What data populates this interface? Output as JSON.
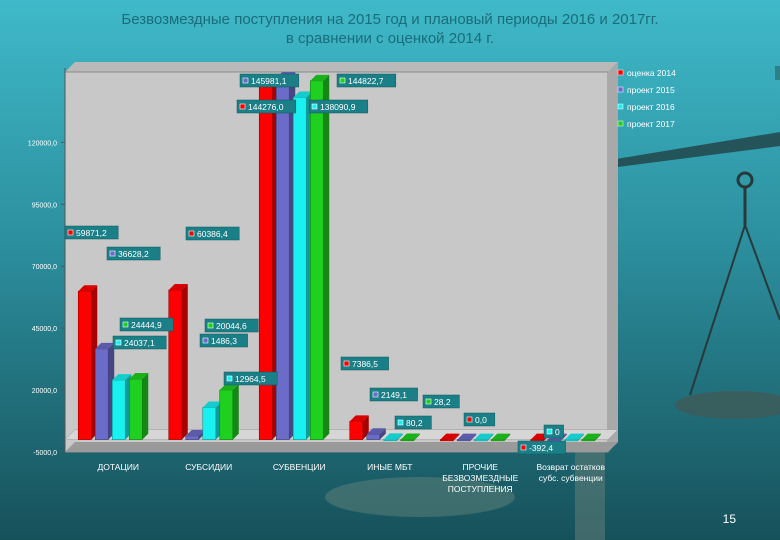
{
  "slide": {
    "title_line1": "Безвозмездные поступления на 2015 год и плановый периоды 2016 и 2017гг.",
    "title_line2": "в сравнении с оценкой 2014 г.",
    "page_number": "15"
  },
  "chart_data": {
    "type": "bar",
    "categories": [
      "ДОТАЦИИ",
      "СУБСИДИИ",
      "СУБВЕНЦИИ",
      "ИНЫЕ МБТ",
      "ПРОЧИЕ БЕЗВОЗМЕЗДНЫЕ ПОСТУПЛЕНИЯ",
      "Возврат остатков субс. субвенции"
    ],
    "category_lines": [
      [
        "ДОТАЦИИ"
      ],
      [
        "СУБСИДИИ"
      ],
      [
        "СУБВЕНЦИИ"
      ],
      [
        "ИНЫЕ МБТ"
      ],
      [
        "ПРОЧИЕ",
        "БЕЗВОЗМЕЗДНЫЕ",
        "ПОСТУПЛЕНИЯ"
      ],
      [
        "Возврат остатков",
        "субс. субвенции"
      ]
    ],
    "series": [
      {
        "name": "оценка 2014",
        "color": "#ff0000",
        "values": [
          59871.2,
          60386.4,
          144276.0,
          7386.5,
          0.0,
          -392.4
        ]
      },
      {
        "name": "проект 2015",
        "color": "#6b6bc8",
        "values": [
          36628.2,
          1486.3,
          145981.1,
          2149.1,
          0.0,
          0
        ]
      },
      {
        "name": "проект 2016",
        "color": "#19f0f0",
        "values": [
          24037.1,
          12964.5,
          138090.9,
          80.2,
          0.0,
          0
        ]
      },
      {
        "name": "проект 2017",
        "color": "#20d020",
        "values": [
          24444.9,
          20044.6,
          144822.7,
          28.2,
          0.0,
          0
        ]
      }
    ],
    "data_labels": [
      [
        "59871,2",
        "60386,4",
        "144276,0",
        "7386,5",
        "0,0",
        "-392,4"
      ],
      [
        "36628,2",
        "1486,3",
        "145981,1",
        "2149,1",
        "",
        ""
      ],
      [
        "24037,1",
        "12964,5",
        "138090,9",
        "80,2",
        "",
        "0"
      ],
      [
        "24444,9",
        "20044,6",
        "144822,7",
        "28,2",
        "",
        ""
      ]
    ],
    "ylim": [
      -5000,
      150000
    ],
    "yticks": [
      -5000,
      20000,
      45000,
      70000,
      95000,
      120000
    ],
    "ytick_labels": [
      "-5000,0",
      "20000,0",
      "45000,0",
      "70000,0",
      "95000,0",
      "120000,0"
    ],
    "legend_position": "right",
    "grid": false
  }
}
